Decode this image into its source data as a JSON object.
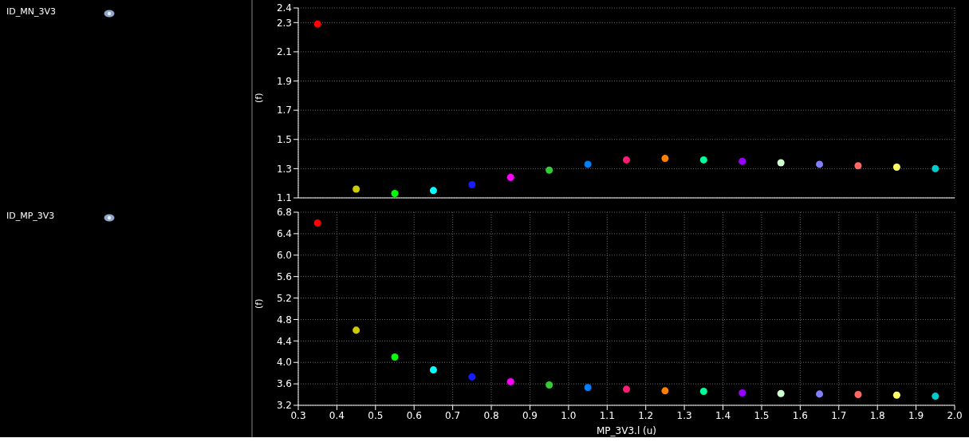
{
  "chart_data": [
    {
      "type": "scatter",
      "ylabel": "(f)",
      "legend": "left",
      "xlim": [
        0.3,
        2.0
      ],
      "xticks": [
        0.3,
        0.4,
        0.5,
        0.6,
        0.7,
        0.8,
        0.9,
        1,
        1.1,
        1.2,
        1.3,
        1.4,
        1.5,
        1.6,
        1.7,
        1.8,
        1.9,
        2
      ],
      "ylim": [
        1.1,
        2.4
      ],
      "yticks": [
        1.1,
        1.3,
        1.5,
        1.7,
        1.9,
        2.1,
        2.3,
        2.4
      ],
      "grid": true,
      "tick_labels": "y",
      "x": [
        0.35,
        0.45,
        0.55,
        0.65,
        0.75,
        0.85,
        0.95,
        1.05,
        1.15,
        1.25,
        1.35,
        1.45,
        1.55,
        1.65,
        1.75,
        1.85,
        1.95
      ],
      "colors": [
        "#ff0000",
        "#cccc00",
        "#00ff00",
        "#00ffff",
        "#1a1aff",
        "#ff00ff",
        "#33cc33",
        "#0080ff",
        "#ff1a75",
        "#ff8000",
        "#00ff99",
        "#9900ff",
        "#ccffcc",
        "#8080ff",
        "#ff6666",
        "#ffff66",
        "#00cccc"
      ],
      "series": [
        {
          "name": "ID_MN_3V3",
          "values": [
            2.29,
            1.16,
            1.13,
            1.15,
            1.19,
            1.24,
            1.29,
            1.33,
            1.36,
            1.37,
            1.36,
            1.35,
            1.34,
            1.33,
            1.32,
            1.31,
            1.3
          ]
        }
      ]
    },
    {
      "type": "scatter",
      "ylabel": "(f)",
      "xlabel": "MP_3V3.l (u)",
      "legend": "left",
      "xlim": [
        0.3,
        2.0
      ],
      "xticks": [
        0.3,
        0.4,
        0.5,
        0.6,
        0.7,
        0.8,
        0.9,
        {
          "value": 1,
          "label": "1.0"
        },
        1.1,
        1.2,
        1.3,
        1.4,
        1.5,
        1.6,
        1.7,
        1.8,
        1.9,
        {
          "value": 2,
          "label": "2.0"
        }
      ],
      "ylim": [
        3.2,
        6.8
      ],
      "yticks": [
        3.2,
        3.6,
        {
          "value": 4,
          "label": "4.0"
        },
        4.4,
        4.8,
        5.2,
        5.6,
        {
          "value": 6,
          "label": "6.0"
        },
        6.4,
        6.8
      ],
      "grid": true,
      "x": [
        0.35,
        0.45,
        0.55,
        0.65,
        0.75,
        0.85,
        0.95,
        1.05,
        1.15,
        1.25,
        1.35,
        1.45,
        1.55,
        1.65,
        1.75,
        1.85,
        1.95
      ],
      "colors": [
        "#ff0000",
        "#cccc00",
        "#00ff00",
        "#00ffff",
        "#1a1aff",
        "#ff00ff",
        "#33cc33",
        "#0080ff",
        "#ff1a75",
        "#ff8000",
        "#00ff99",
        "#9900ff",
        "#ccffcc",
        "#8080ff",
        "#ff6666",
        "#ffff66",
        "#00cccc"
      ],
      "series": [
        {
          "name": "ID_MP_3V3",
          "values": [
            6.6,
            4.6,
            4.1,
            3.86,
            3.73,
            3.64,
            3.58,
            3.53,
            3.5,
            3.47,
            3.46,
            3.43,
            3.42,
            3.41,
            3.4,
            3.39,
            3.37
          ]
        }
      ]
    }
  ]
}
